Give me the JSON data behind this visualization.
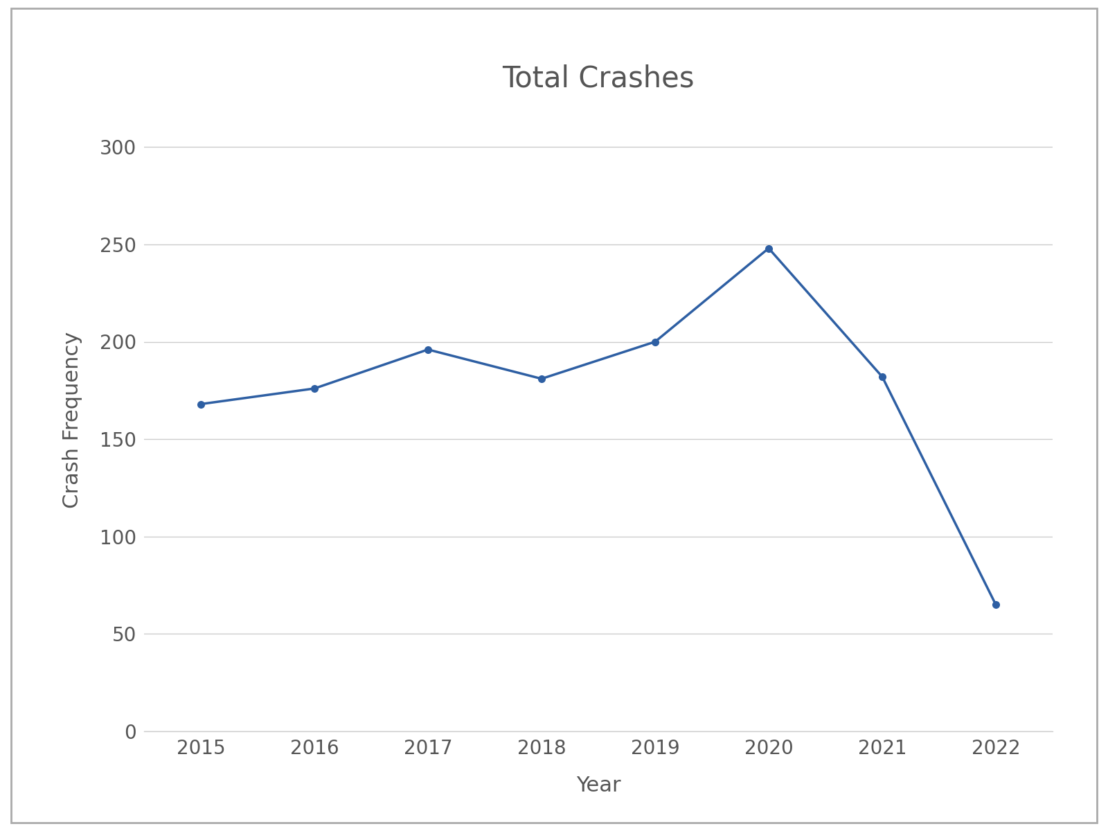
{
  "title": "Total Crashes",
  "xlabel": "Year",
  "ylabel": "Crash Frequency",
  "years": [
    2015,
    2016,
    2017,
    2018,
    2019,
    2020,
    2021,
    2022
  ],
  "crashes": [
    168,
    176,
    196,
    181,
    200,
    248,
    182,
    65
  ],
  "line_color": "#2E5FA3",
  "marker": "o",
  "marker_size": 7,
  "line_width": 2.5,
  "ylim": [
    0,
    320
  ],
  "yticks": [
    0,
    50,
    100,
    150,
    200,
    250,
    300
  ],
  "title_fontsize": 30,
  "label_fontsize": 22,
  "tick_fontsize": 20,
  "background_color": "#ffffff",
  "outer_bg": "#f0f0f0",
  "grid_color": "#cccccc",
  "text_color": "#555555"
}
